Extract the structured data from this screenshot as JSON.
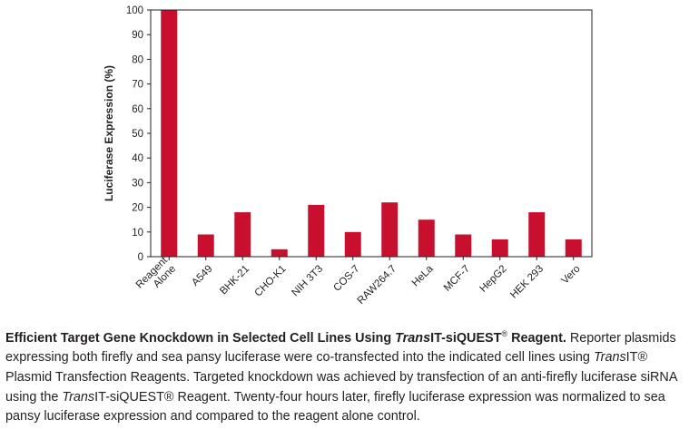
{
  "chart_data": {
    "type": "bar",
    "title": "",
    "xlabel": "",
    "ylabel": "Luciferase Expression (%)",
    "ylim": [
      0,
      100
    ],
    "yticks": [
      0,
      10,
      20,
      30,
      40,
      50,
      60,
      70,
      80,
      90,
      100
    ],
    "grid": false,
    "bar_color": "#c8102e",
    "categories": [
      "Reagent\nAlone",
      "A549",
      "BHK-21",
      "CHO-K1",
      "NIH 3T3",
      "COS-7",
      "RAW264.7",
      "HeLa",
      "MCF-7",
      "HepG2",
      "HEK 293",
      "Vero"
    ],
    "values": [
      100,
      9,
      18,
      3,
      21,
      10,
      22,
      15,
      9,
      7,
      18,
      7
    ]
  },
  "caption": {
    "lead_1": "Efficient Target Gene Knockdown in Selected Cell Lines Using ",
    "lead_trans": "Trans",
    "lead_2": "IT-siQUEST",
    "lead_reg": "®",
    "lead_3": " Reagent.",
    "body_1": " Reporter plasmids expressing both firefly and sea pansy luciferase were co-transfected into the indicated cell lines using ",
    "body_trans_1": "Trans",
    "body_2": "IT® Plasmid Transfection Reagents. Targeted knockdown was achieved by transfection of an anti-firefly luciferase siRNA using the ",
    "body_trans_2": "Trans",
    "body_3": "IT-siQUEST® Reagent. Twenty-four hours later, firefly luciferase expression was normalized to sea pansy luciferase expression and compared to the reagent alone control."
  }
}
